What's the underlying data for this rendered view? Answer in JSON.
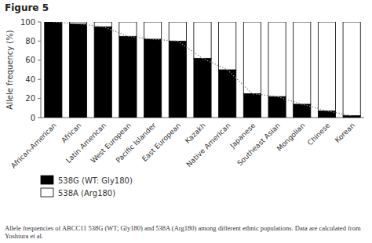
{
  "chart_data": {
    "type": "bar",
    "stacked": true,
    "title": "Figure 5",
    "y_label": "Allele frequency (%)",
    "caption": "Allele frequencies of ABCC11 538G (WT; Gly180) and 538A (Arg180) among different ethnic populations. Data are calculated from Yoshiura et al.",
    "categories": [
      "African-American",
      "African",
      "Latin American",
      "West European",
      "Pacific Islander",
      "East European",
      "Kazakh",
      "Native American",
      "Japanese",
      "Southeast Asian",
      "Mongolian",
      "Chinese",
      "Korean"
    ],
    "series": [
      {
        "name": "538G (WT: Gly180)",
        "color": "#000000",
        "values": [
          100,
          98,
          95,
          85,
          82,
          80,
          62,
          50,
          25,
          22,
          14,
          7,
          2
        ]
      },
      {
        "name": "538A (Arg180)",
        "color": "#ffffff",
        "values": [
          0,
          2,
          5,
          15,
          18,
          20,
          38,
          50,
          75,
          78,
          86,
          93,
          98
        ]
      },
      {
        "type": "line",
        "line_style": "dotted",
        "color": "#888888",
        "values": [
          100,
          98,
          95,
          85,
          82,
          80,
          62,
          50,
          25,
          22,
          14,
          7,
          2
        ]
      }
    ],
    "ylim": [
      0,
      100
    ],
    "yticks": [
      0,
      20,
      40,
      60,
      80,
      100
    ],
    "grid": false,
    "legend": "bottom"
  }
}
